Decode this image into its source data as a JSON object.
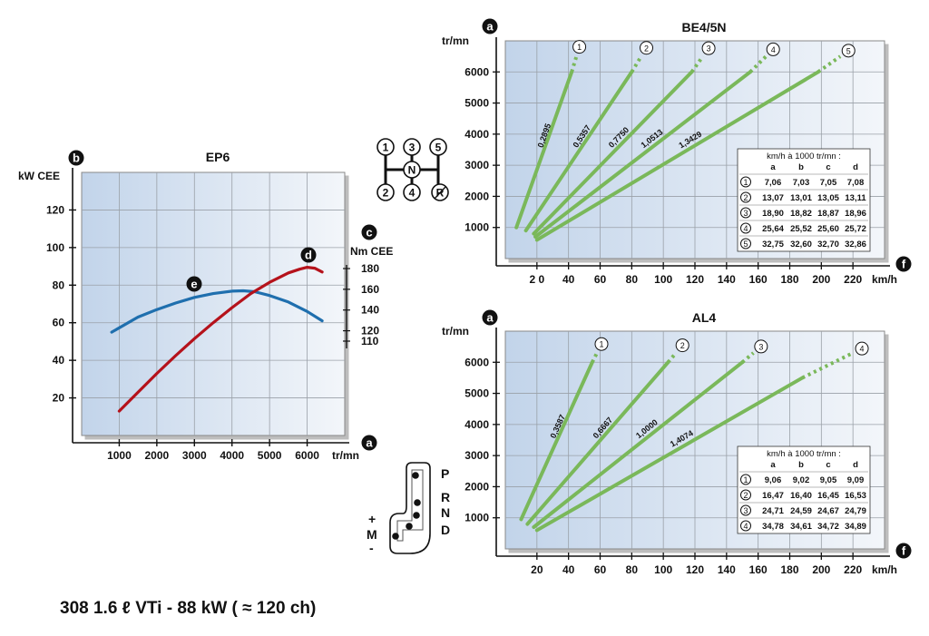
{
  "footer": {
    "title": "308 1.6 ℓ VTi - 88 kW ( ≈ 120 ch)"
  },
  "gear_diagram": {
    "manual": {
      "positions": [
        "1",
        "3",
        "5",
        "N",
        "2",
        "4",
        "R"
      ]
    },
    "auto": {
      "positions": [
        "P",
        "R",
        "N",
        "D"
      ],
      "plus": "+",
      "m": "M",
      "minus": "-"
    }
  },
  "colors": {
    "panel_left": "#c2d4ea",
    "panel_right": "#f3f6fa",
    "grid": "#9aa0a8",
    "green": "#7ab85a",
    "power": "#1f6fae",
    "torque": "#b5121b"
  },
  "chart_data": [
    {
      "id": "ep6",
      "type": "line",
      "title": "EP6",
      "xlabel": "tr/mn",
      "ylabel": "kW CEE",
      "y2label": "Nm CEE",
      "badges": {
        "x": "a",
        "y": "b",
        "y2": "c",
        "torque": "d",
        "power": "e"
      },
      "xlim": [
        0,
        7000
      ],
      "ylim": [
        0,
        140
      ],
      "xticks": [
        1000,
        2000,
        3000,
        4000,
        5000,
        6000
      ],
      "xtick_labels": [
        "1000",
        "2000",
        "3000",
        "4000",
        "5000",
        "6000"
      ],
      "yticks": [
        20,
        40,
        60,
        80,
        100,
        120
      ],
      "ytick_labels": [
        "20",
        "40",
        "60",
        "80",
        "100",
        "120"
      ],
      "y2lim": [
        110,
        180
      ],
      "y2ticks": [
        110,
        120,
        140,
        160,
        180
      ],
      "y2tick_labels": [
        "110",
        "120",
        "140",
        "160",
        "180"
      ],
      "series": [
        {
          "key": "power",
          "axis": "left",
          "x": [
            800,
            1500,
            2000,
            2500,
            3000,
            3500,
            4000,
            4300,
            4600,
            5000,
            5500,
            6000,
            6400
          ],
          "y": [
            55,
            63,
            67,
            70.5,
            73.5,
            75.5,
            76.8,
            77,
            76.5,
            74.5,
            71,
            66,
            61
          ]
        },
        {
          "key": "torque",
          "axis": "left",
          "x": [
            1000,
            1500,
            2000,
            2500,
            3000,
            3500,
            4000,
            4500,
            5000,
            5500,
            5800,
            6000,
            6200,
            6400
          ],
          "y": [
            13,
            23,
            33,
            42.5,
            51.5,
            60,
            68,
            75.5,
            81.5,
            86.5,
            88.5,
            89.5,
            89,
            87
          ]
        }
      ]
    },
    {
      "id": "be45n",
      "type": "line",
      "title": "BE4/5N",
      "xlabel": "km/h",
      "ylabel": "tr/mn",
      "badges": {
        "x": "f",
        "y": "a"
      },
      "xlim": [
        0,
        240
      ],
      "ylim": [
        0,
        7000
      ],
      "xticks": [
        20,
        40,
        60,
        80,
        100,
        120,
        140,
        160,
        180,
        200,
        220
      ],
      "xtick_labels": [
        "2 0",
        "40",
        "60",
        "80",
        "100",
        "120",
        "140",
        "160",
        "180",
        "200",
        "220"
      ],
      "yticks": [
        1000,
        2000,
        3000,
        4000,
        5000,
        6000
      ],
      "ytick_labels": [
        "1000",
        "2000",
        "3000",
        "4000",
        "5000",
        "6000"
      ],
      "series": [
        {
          "gear": "1",
          "ratio": "0,2895",
          "x": [
            7,
            42
          ],
          "y": [
            1000,
            6000
          ],
          "dot_end": [
            45,
            6500
          ]
        },
        {
          "gear": "2",
          "ratio": "0,5357",
          "x": [
            13,
            80
          ],
          "y": [
            900,
            6000
          ],
          "dot_end": [
            86,
            6500
          ]
        },
        {
          "gear": "3",
          "ratio": "0,7750",
          "x": [
            18,
            118
          ],
          "y": [
            800,
            6000
          ],
          "dot_end": [
            125,
            6500
          ]
        },
        {
          "gear": "4",
          "ratio": "1,0513",
          "x": [
            19,
            155
          ],
          "y": [
            700,
            6000
          ],
          "dot_end": [
            165,
            6500
          ]
        },
        {
          "gear": "5",
          "ratio": "1,3429",
          "x": [
            20,
            198
          ],
          "y": [
            600,
            6000
          ],
          "dot_end": [
            212,
            6500
          ]
        }
      ],
      "table": {
        "header": "km/h à 1000 tr/mn :",
        "columns": [
          "a",
          "b",
          "c",
          "d"
        ],
        "rows": [
          {
            "gear": "1",
            "values": [
              "7,06",
              "7,03",
              "7,05",
              "7,08"
            ]
          },
          {
            "gear": "2",
            "values": [
              "13,07",
              "13,01",
              "13,05",
              "13,11"
            ]
          },
          {
            "gear": "3",
            "values": [
              "18,90",
              "18,82",
              "18,87",
              "18,96"
            ]
          },
          {
            "gear": "4",
            "values": [
              "25,64",
              "25,52",
              "25,60",
              "25,72"
            ]
          },
          {
            "gear": "5",
            "values": [
              "32,75",
              "32,60",
              "32,70",
              "32,86"
            ]
          }
        ]
      }
    },
    {
      "id": "al4",
      "type": "line",
      "title": "AL4",
      "xlabel": "km/h",
      "ylabel": "tr/mn",
      "badges": {
        "x": "f",
        "y": "a"
      },
      "xlim": [
        0,
        240
      ],
      "ylim": [
        0,
        7000
      ],
      "xticks": [
        20,
        40,
        60,
        80,
        100,
        120,
        140,
        160,
        180,
        200,
        220
      ],
      "xtick_labels": [
        "20",
        "40",
        "60",
        "80",
        "100",
        "120",
        "140",
        "160",
        "180",
        "200",
        "220"
      ],
      "yticks": [
        1000,
        2000,
        3000,
        4000,
        5000,
        6000
      ],
      "ytick_labels": [
        "1000",
        "2000",
        "3000",
        "4000",
        "5000",
        "6000"
      ],
      "series": [
        {
          "gear": "1",
          "ratio": "0,3587",
          "x": [
            10,
            55
          ],
          "y": [
            950,
            6000
          ],
          "dot_end": [
            58,
            6300
          ]
        },
        {
          "gear": "2",
          "ratio": "0,6667",
          "x": [
            14,
            103
          ],
          "y": [
            800,
            6000
          ],
          "dot_end": [
            108,
            6300
          ]
        },
        {
          "gear": "3",
          "ratio": "1,0000",
          "x": [
            18,
            150
          ],
          "y": [
            700,
            6000
          ],
          "dot_end": [
            157,
            6300
          ]
        },
        {
          "gear": "4",
          "ratio": "1,4074",
          "x": [
            20,
            188
          ],
          "y": [
            600,
            5500
          ],
          "dot_end": [
            220,
            6300
          ]
        }
      ],
      "table": {
        "header": "km/h à 1000 tr/mn :",
        "columns": [
          "a",
          "b",
          "c",
          "d"
        ],
        "rows": [
          {
            "gear": "1",
            "values": [
              "9,06",
              "9,02",
              "9,05",
              "9,09"
            ]
          },
          {
            "gear": "2",
            "values": [
              "16,47",
              "16,40",
              "16,45",
              "16,53"
            ]
          },
          {
            "gear": "3",
            "values": [
              "24,71",
              "24,59",
              "24,67",
              "24,79"
            ]
          },
          {
            "gear": "4",
            "values": [
              "34,78",
              "34,61",
              "34,72",
              "34,89"
            ]
          }
        ]
      }
    }
  ]
}
